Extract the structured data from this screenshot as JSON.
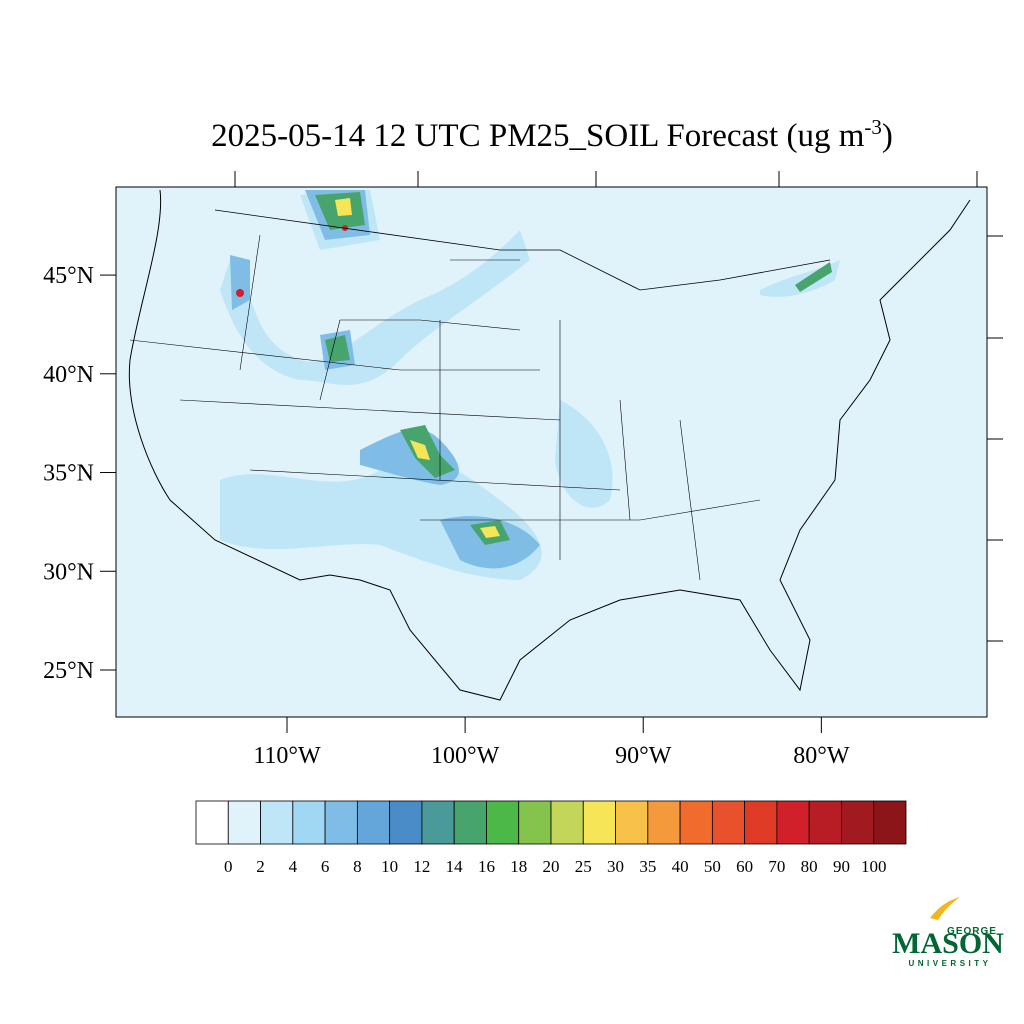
{
  "map": {
    "title": {
      "text": "2025-05-14 12 UTC PM25_SOIL Forecast (ug m",
      "superscript": "-3",
      "suffix": ")"
    },
    "latlim": [
      22.62,
      49.46
    ],
    "lonlim": [
      -119.6,
      -70.7
    ],
    "lat_ticks": [
      {
        "value": 45,
        "label": "45°N"
      },
      {
        "value": 40,
        "label": "40°N"
      },
      {
        "value": 35,
        "label": "35°N"
      },
      {
        "value": 30,
        "label": "30°N"
      },
      {
        "value": 25,
        "label": "25°N"
      }
    ],
    "lon_ticks": [
      {
        "value": -110,
        "label": "110°W"
      },
      {
        "value": -100,
        "label": "100°W"
      },
      {
        "value": -90,
        "label": "90°W"
      },
      {
        "value": -80,
        "label": "80°W"
      }
    ],
    "colorbar": {
      "levels": [
        0,
        2,
        4,
        6,
        8,
        10,
        12,
        14,
        16,
        18,
        20,
        25,
        30,
        35,
        40,
        50,
        60,
        70,
        80,
        90,
        100
      ],
      "colors": [
        "#ffffff",
        "#e0f3fb",
        "#bfe6f7",
        "#a0d8f4",
        "#80bde6",
        "#64a6da",
        "#4a8cc8",
        "#4a9a9a",
        "#46a46c",
        "#4cb848",
        "#85c44c",
        "#c3d659",
        "#f6e556",
        "#f7c049",
        "#f5993d",
        "#f16c2c",
        "#e9502c",
        "#df3a26",
        "#d2202a",
        "#b81c25",
        "#a11a20",
        "#8c1519"
      ]
    },
    "logo": {
      "top": "GEORGE",
      "main": "MASON",
      "bottom": "UNIVERSITY"
    }
  }
}
